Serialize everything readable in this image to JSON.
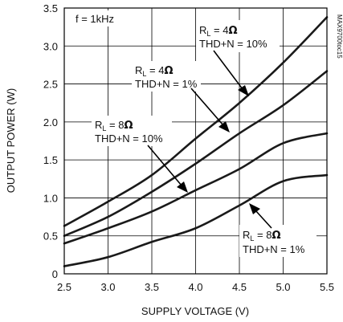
{
  "chart_data": {
    "type": "line",
    "xlabel": "SUPPLY VOLTAGE (V)",
    "ylabel": "OUTPUT POWER (W)",
    "xlim": [
      2.5,
      5.5
    ],
    "ylim": [
      0,
      3.5
    ],
    "x_ticks": [
      "2.5",
      "3.0",
      "3.5",
      "4.0",
      "4.5",
      "5.0",
      "5.5"
    ],
    "y_ticks": [
      "0",
      "0.5",
      "1.0",
      "1.5",
      "2.0",
      "2.5",
      "3.0",
      "3.5"
    ],
    "grid": true,
    "condition_label": "f = 1kHz",
    "watermark": "MAX9700toc15",
    "series": [
      {
        "rl_prefix": "R",
        "rl_sub": "L",
        "rl_eq": " = 4",
        "rl_unit": "Ω",
        "thd": "THD+N = 10%",
        "x": [
          2.5,
          3.0,
          3.5,
          4.0,
          4.5,
          5.0,
          5.5
        ],
        "y": [
          0.63,
          0.95,
          1.3,
          1.78,
          2.25,
          2.78,
          3.38
        ]
      },
      {
        "rl_prefix": "R",
        "rl_sub": "L",
        "rl_eq": " = 4",
        "rl_unit": "Ω",
        "thd": "THD+N = 1%",
        "x": [
          2.5,
          3.0,
          3.5,
          4.0,
          4.5,
          5.0,
          5.5
        ],
        "y": [
          0.5,
          0.75,
          1.08,
          1.45,
          1.85,
          2.22,
          2.67
        ]
      },
      {
        "rl_prefix": "R",
        "rl_sub": "L",
        "rl_eq": " = 8",
        "rl_unit": "Ω",
        "thd": "THD+N = 10%",
        "x": [
          2.5,
          3.0,
          3.5,
          4.0,
          4.5,
          5.0,
          5.5
        ],
        "y": [
          0.4,
          0.6,
          0.82,
          1.1,
          1.38,
          1.72,
          1.85
        ]
      },
      {
        "rl_prefix": "R",
        "rl_sub": "L",
        "rl_eq": " = 8",
        "rl_unit": "Ω",
        "thd": "THD+N = 1%",
        "x": [
          2.5,
          3.0,
          3.5,
          4.0,
          4.5,
          5.0,
          5.5
        ],
        "y": [
          0.1,
          0.22,
          0.42,
          0.6,
          0.9,
          1.22,
          1.3
        ]
      }
    ]
  }
}
